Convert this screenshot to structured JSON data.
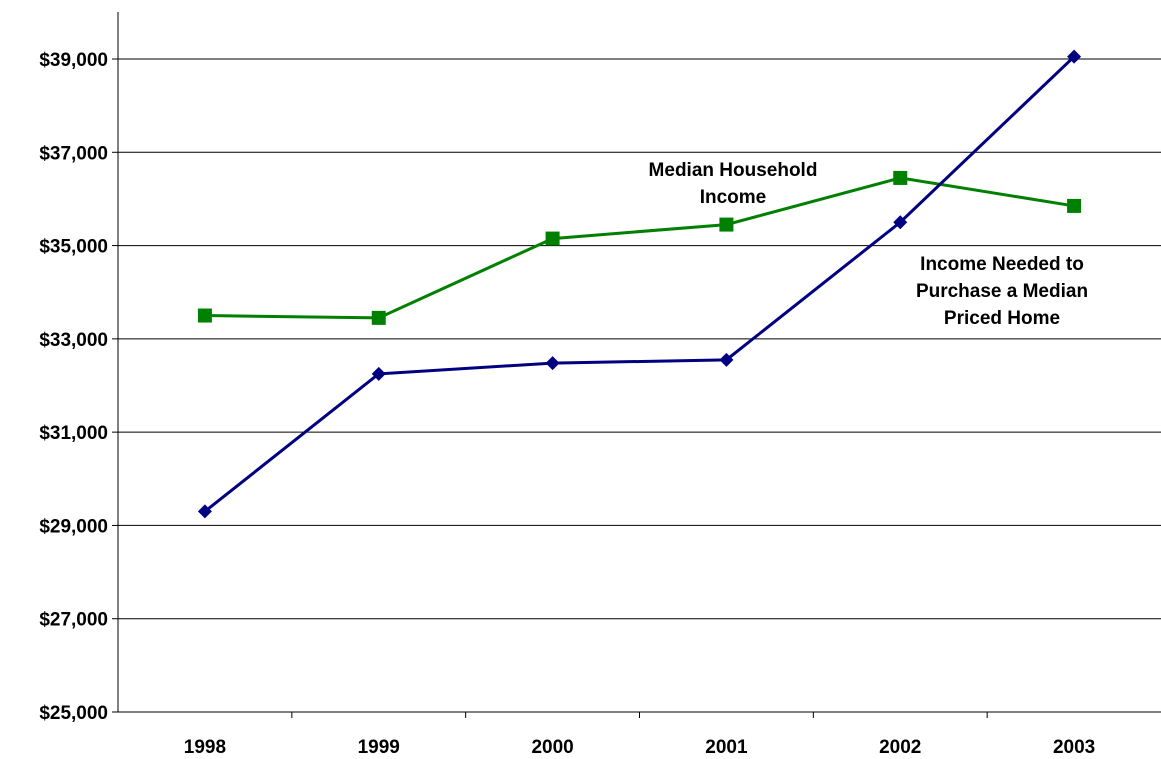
{
  "chart_data": {
    "type": "line",
    "categories": [
      "1998",
      "1999",
      "2000",
      "2001",
      "2002",
      "2003"
    ],
    "series": [
      {
        "name": "Median Household Income",
        "color": "#008000",
        "marker": "square",
        "values": [
          33500,
          33450,
          35150,
          35450,
          36450,
          35850
        ]
      },
      {
        "name": "Income Needed to Purchase a Median Priced Home",
        "color": "#000080",
        "marker": "diamond",
        "values": [
          29300,
          32250,
          32480,
          32550,
          35500,
          39050
        ]
      }
    ],
    "ylim": [
      25000,
      39000
    ],
    "ytick_step": 2000,
    "ytick_labels": [
      "$25,000",
      "$27,000",
      "$29,000",
      "$31,000",
      "$33,000",
      "$35,000",
      "$37,000",
      "$39,000"
    ],
    "grid": true,
    "legend": "none",
    "annotations": [
      {
        "lines": [
          "Median Household",
          "Income"
        ]
      },
      {
        "lines": [
          "Income Needed to",
          "Purchase a Median",
          "Priced Home"
        ]
      }
    ],
    "title": "",
    "xlabel": "",
    "ylabel": ""
  }
}
